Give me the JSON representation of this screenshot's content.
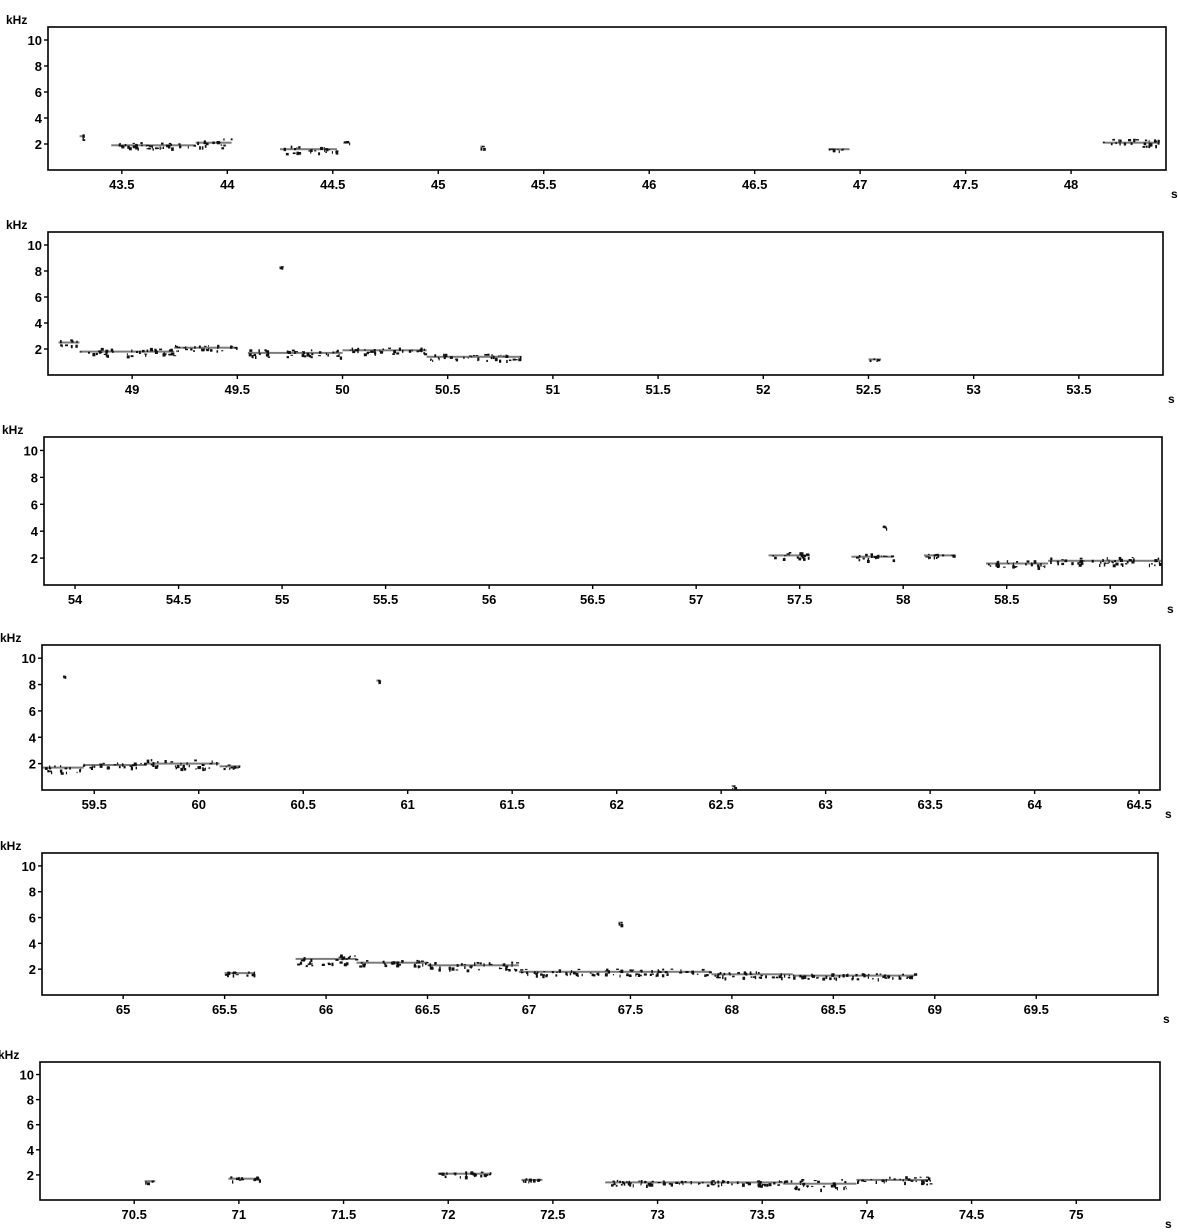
{
  "chart_data": [
    {
      "type": "scatter",
      "title": "",
      "ylabel": "kHz",
      "xlabel": "s",
      "xlim": [
        43.15,
        48.45
      ],
      "ylim": [
        0,
        11
      ],
      "yticks": [
        2,
        4,
        6,
        8,
        10
      ],
      "xticks": [
        "43.5",
        "44",
        "44.5",
        "45",
        "45.5",
        "46",
        "46.5",
        "47",
        "47.5",
        "48"
      ],
      "segments": [
        [
          43.3,
          43.32,
          2.6,
          0.7
        ],
        [
          43.45,
          43.85,
          1.9,
          0.5
        ],
        [
          43.85,
          44.02,
          2.1,
          0.7
        ],
        [
          44.25,
          44.52,
          1.6,
          0.6
        ],
        [
          44.55,
          44.58,
          2.1,
          0.3
        ],
        [
          45.2,
          45.22,
          1.8,
          0.2
        ],
        [
          46.85,
          46.95,
          1.6,
          0.2
        ],
        [
          48.15,
          48.42,
          2.1,
          0.6
        ]
      ]
    },
    {
      "type": "scatter",
      "title": "",
      "ylabel": "kHz",
      "xlabel": "s",
      "xlim": [
        48.6,
        53.9
      ],
      "ylim": [
        0,
        11
      ],
      "yticks": [
        2,
        4,
        6,
        8,
        10
      ],
      "xticks": [
        "49",
        "49.5",
        "50",
        "50.5",
        "51",
        "51.5",
        "52",
        "52.5",
        "53",
        "53.5"
      ],
      "segments": [
        [
          48.65,
          48.75,
          2.5,
          0.5
        ],
        [
          48.75,
          49.2,
          1.8,
          0.6
        ],
        [
          49.2,
          49.5,
          2.1,
          0.5
        ],
        [
          49.55,
          50.0,
          1.7,
          0.6
        ],
        [
          50.0,
          50.4,
          1.9,
          0.5
        ],
        [
          50.4,
          50.85,
          1.4,
          0.5
        ],
        [
          52.5,
          52.56,
          1.2,
          0.2
        ],
        [
          49.7,
          49.71,
          8.3,
          0.1
        ]
      ]
    },
    {
      "type": "scatter",
      "title": "",
      "ylabel": "kHz",
      "xlabel": "s",
      "xlim": [
        53.85,
        59.25
      ],
      "ylim": [
        0,
        11
      ],
      "yticks": [
        2,
        4,
        6,
        8,
        10
      ],
      "xticks": [
        "54",
        "54.5",
        "55",
        "55.5",
        "56",
        "56.5",
        "57",
        "57.5",
        "58",
        "58.5",
        "59"
      ],
      "segments": [
        [
          57.35,
          57.55,
          2.2,
          0.5
        ],
        [
          57.75,
          57.95,
          2.1,
          0.6
        ],
        [
          58.1,
          58.25,
          2.2,
          0.3
        ],
        [
          58.4,
          58.7,
          1.6,
          0.5
        ],
        [
          58.7,
          59.25,
          1.8,
          0.6
        ],
        [
          57.9,
          57.92,
          4.3,
          0.3
        ]
      ]
    },
    {
      "type": "scatter",
      "title": "",
      "ylabel": "kHz",
      "xlabel": "s",
      "xlim": [
        59.25,
        64.6
      ],
      "ylim": [
        0,
        11
      ],
      "yticks": [
        2,
        4,
        6,
        8,
        10
      ],
      "xticks": [
        "59.5",
        "60",
        "60.5",
        "61",
        "61.5",
        "62",
        "62.5",
        "63",
        "63.5",
        "64",
        "64.5"
      ],
      "segments": [
        [
          59.25,
          59.45,
          1.7,
          0.7
        ],
        [
          59.45,
          59.75,
          1.9,
          0.4
        ],
        [
          59.75,
          60.1,
          2.0,
          0.7
        ],
        [
          60.1,
          60.2,
          1.8,
          0.3
        ],
        [
          59.35,
          59.36,
          8.6,
          0.1
        ],
        [
          60.85,
          60.86,
          8.3,
          0.1
        ],
        [
          62.55,
          62.57,
          0.3,
          0.3
        ]
      ]
    },
    {
      "type": "scatter",
      "title": "",
      "ylabel": "kHz",
      "xlabel": "s",
      "xlim": [
        64.6,
        70.1
      ],
      "ylim": [
        0,
        11
      ],
      "yticks": [
        2,
        4,
        6,
        8,
        10
      ],
      "xticks": [
        "65",
        "65.5",
        "66",
        "66.5",
        "67",
        "67.5",
        "68",
        "68.5",
        "69",
        "69.5"
      ],
      "segments": [
        [
          65.5,
          65.65,
          1.7,
          0.3
        ],
        [
          65.85,
          66.15,
          2.8,
          1.0
        ],
        [
          66.15,
          66.5,
          2.5,
          0.5
        ],
        [
          66.5,
          66.95,
          2.3,
          0.7
        ],
        [
          66.95,
          67.4,
          1.8,
          0.5
        ],
        [
          67.4,
          67.9,
          1.8,
          0.5
        ],
        [
          67.9,
          68.3,
          1.6,
          0.5
        ],
        [
          68.3,
          68.9,
          1.5,
          0.4
        ],
        [
          67.44,
          67.46,
          5.6,
          0.2
        ]
      ]
    },
    {
      "type": "scatter",
      "title": "",
      "ylabel": "kHz",
      "xlabel": "s",
      "xlim": [
        70.05,
        75.4
      ],
      "ylim": [
        0,
        11
      ],
      "yticks": [
        2,
        4,
        6,
        8,
        10
      ],
      "xticks": [
        "70.5",
        "71",
        "71.5",
        "72",
        "72.5",
        "73",
        "73.5",
        "74",
        "74.5",
        "75"
      ],
      "segments": [
        [
          70.55,
          70.6,
          1.5,
          0.2
        ],
        [
          70.95,
          71.1,
          1.7,
          0.4
        ],
        [
          71.95,
          72.2,
          2.1,
          0.4
        ],
        [
          72.35,
          72.45,
          1.6,
          0.3
        ],
        [
          72.75,
          73.3,
          1.4,
          0.4
        ],
        [
          73.3,
          73.6,
          1.4,
          0.4
        ],
        [
          73.6,
          73.95,
          1.3,
          0.8
        ],
        [
          73.95,
          74.3,
          1.6,
          0.6
        ]
      ]
    }
  ]
}
